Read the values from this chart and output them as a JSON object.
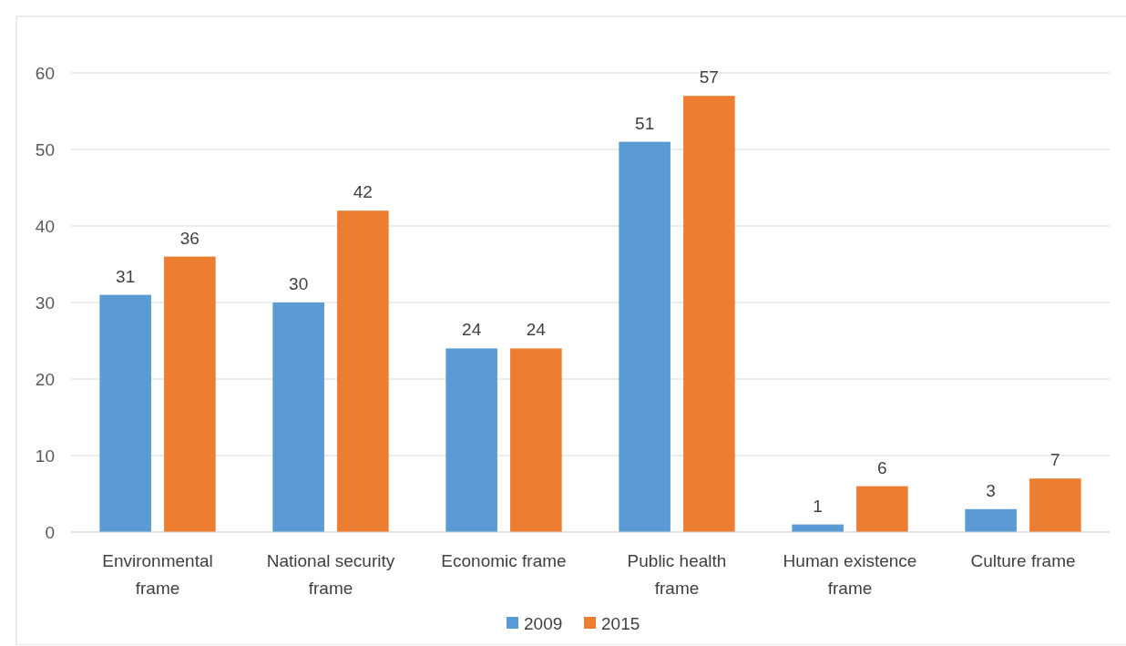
{
  "chart_data": {
    "type": "bar",
    "categories": [
      "Environmental frame",
      "National security frame",
      "Economic frame",
      "Public health frame",
      "Human existence frame",
      "Culture frame"
    ],
    "series": [
      {
        "name": "2009",
        "color": "#5b9bd5",
        "values": [
          31,
          30,
          24,
          51,
          1,
          3
        ]
      },
      {
        "name": "2015",
        "color": "#ed7d31",
        "values": [
          36,
          42,
          24,
          57,
          6,
          7
        ]
      }
    ],
    "ylim": [
      0,
      60
    ],
    "yticks": [
      0,
      10,
      20,
      30,
      40,
      50,
      60
    ],
    "grid": "y",
    "legend": "bottom",
    "data_labels": true
  }
}
